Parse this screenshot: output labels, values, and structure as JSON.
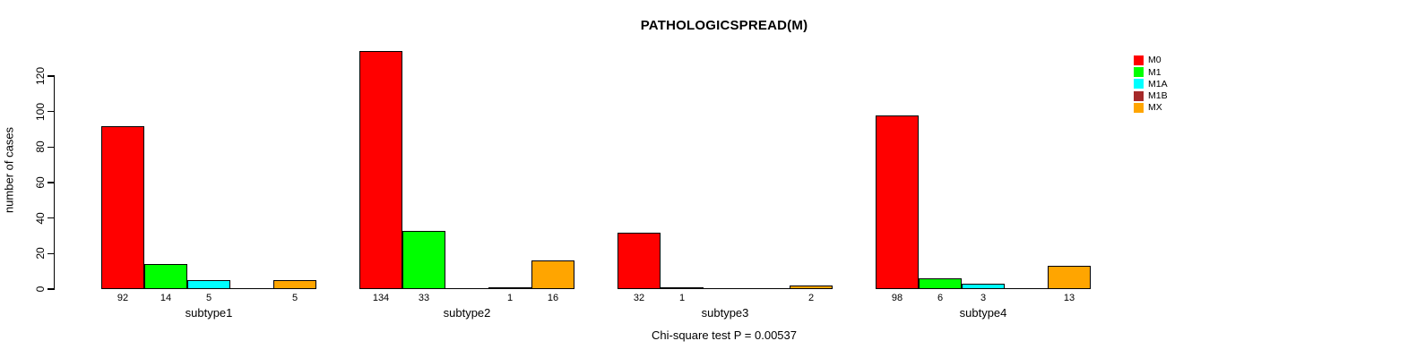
{
  "chart_data": {
    "type": "bar",
    "title": "PATHOLOGICSPREAD(M)",
    "ylabel": "number of cases",
    "xlabel": "",
    "annotation": "Chi-square test P = 0.00537",
    "categories": [
      "subtype1",
      "subtype2",
      "subtype3",
      "subtype4"
    ],
    "series": [
      {
        "name": "M0",
        "color": "#FF0000",
        "values": [
          92,
          134,
          32,
          98
        ]
      },
      {
        "name": "M1",
        "color": "#00FF00",
        "values": [
          14,
          33,
          1,
          6
        ]
      },
      {
        "name": "M1A",
        "color": "#00FFFF",
        "values": [
          5,
          0,
          0,
          3
        ]
      },
      {
        "name": "M1B",
        "color": "#A52A2A",
        "values": [
          0,
          1,
          0,
          0
        ]
      },
      {
        "name": "MX",
        "color": "#FFA500",
        "values": [
          5,
          16,
          2,
          13
        ]
      }
    ],
    "ylim": [
      0,
      120
    ],
    "yticks": [
      0,
      20,
      40,
      60,
      80,
      100,
      120
    ],
    "grid": false,
    "legend_position": "top-right",
    "bar_value_labels_shown": true,
    "zero_bars_drawn_as_baseline_segments": true
  }
}
